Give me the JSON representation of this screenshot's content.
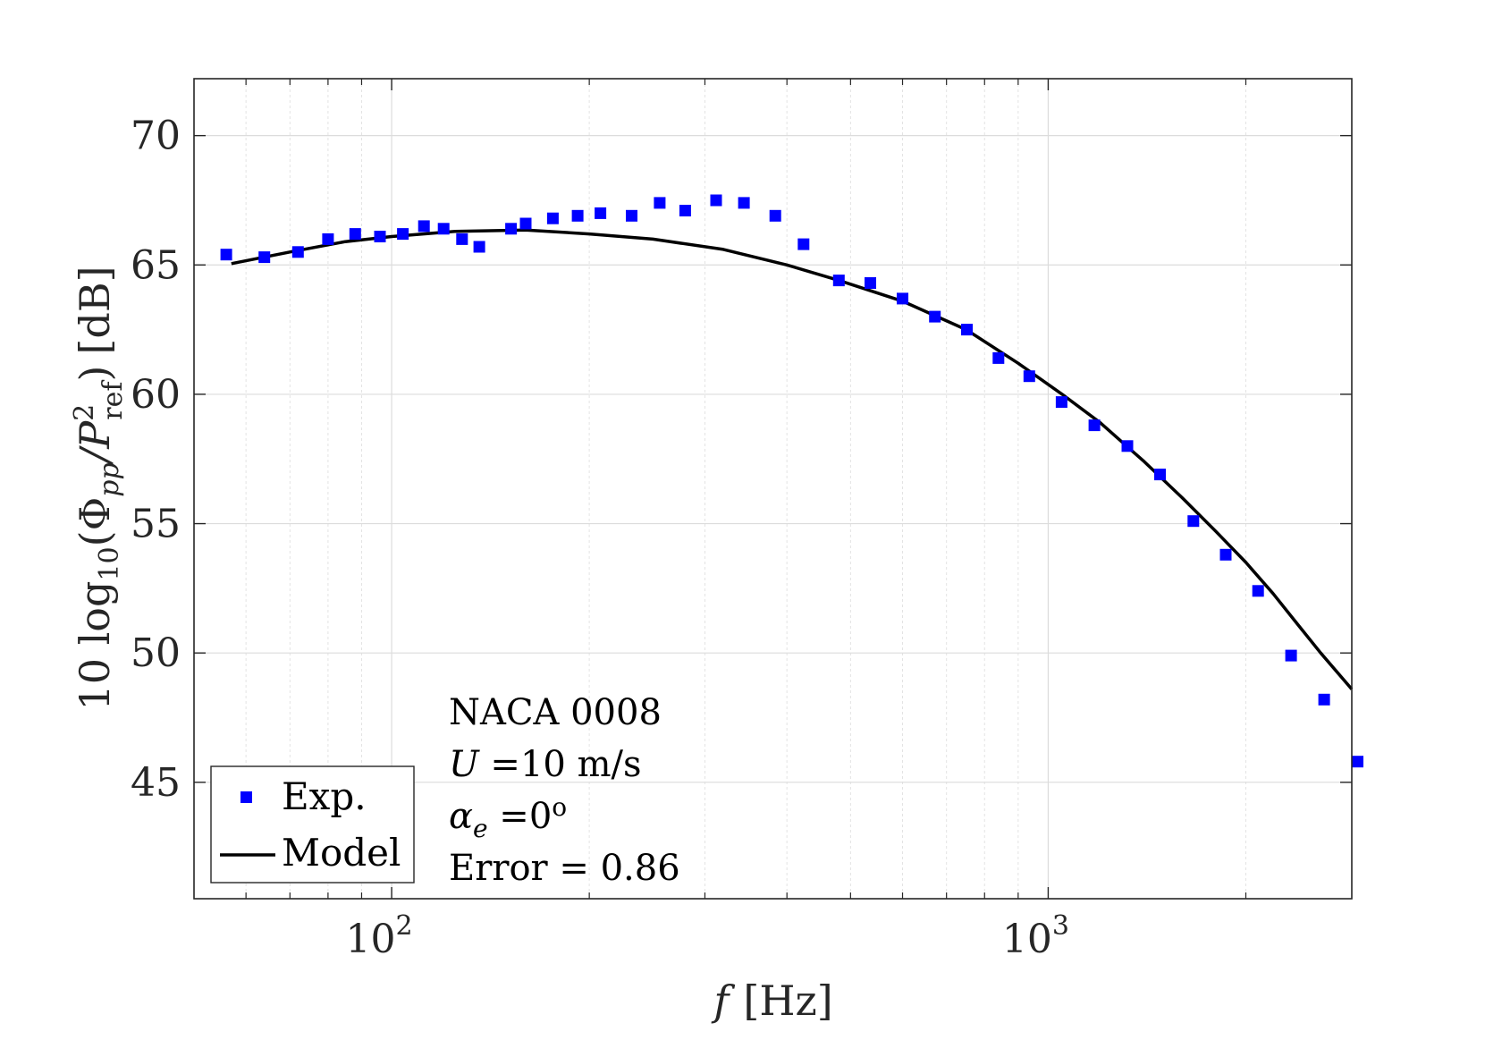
{
  "chart_data": {
    "type": "scatter",
    "title": "",
    "xlabel": {
      "symbol": "f",
      "unit": "[Hz]"
    },
    "ylabel": {
      "prefix": "10 log",
      "sub": "10",
      "phi": "(Φ",
      "phi_sub": "pp",
      "slash": "/P",
      "p_sup": "2",
      "p_sub": "ref",
      "close": ")",
      "unit": "[dB]"
    },
    "x_scale": "log",
    "xlim": [
      50,
      2900
    ],
    "ylim": [
      40.5,
      72.2
    ],
    "x_ticks": [
      {
        "value": 100,
        "base": "10",
        "exp": "2"
      },
      {
        "value": 1000,
        "base": "10",
        "exp": "3"
      }
    ],
    "y_ticks": [
      45,
      50,
      55,
      60,
      65,
      70
    ],
    "grid": true,
    "colors": {
      "exp": "#0000ff",
      "model": "#000000",
      "grid": "#e3e3e3",
      "axes": "#262626"
    },
    "series": [
      {
        "name": "Exp.",
        "style": "square-markers",
        "points": [
          [
            56,
            65.4
          ],
          [
            64,
            65.3
          ],
          [
            72,
            65.5
          ],
          [
            80,
            66.0
          ],
          [
            88,
            66.2
          ],
          [
            96,
            66.1
          ],
          [
            104,
            66.2
          ],
          [
            112,
            66.5
          ],
          [
            120,
            66.4
          ],
          [
            128,
            66.0
          ],
          [
            136,
            65.7
          ],
          [
            152,
            66.4
          ],
          [
            160,
            66.6
          ],
          [
            176,
            66.8
          ],
          [
            192,
            66.9
          ],
          [
            208,
            67.0
          ],
          [
            232,
            66.9
          ],
          [
            256,
            67.4
          ],
          [
            280,
            67.1
          ],
          [
            312,
            67.5
          ],
          [
            344,
            67.4
          ],
          [
            384,
            66.9
          ],
          [
            424,
            65.8
          ],
          [
            480,
            64.4
          ],
          [
            536,
            64.3
          ],
          [
            600,
            63.7
          ],
          [
            672,
            63.0
          ],
          [
            752,
            62.5
          ],
          [
            840,
            61.4
          ],
          [
            936,
            60.7
          ],
          [
            1048,
            59.7
          ],
          [
            1176,
            58.8
          ],
          [
            1320,
            58.0
          ],
          [
            1480,
            56.9
          ],
          [
            1664,
            55.1
          ],
          [
            1864,
            53.8
          ],
          [
            2088,
            52.4
          ],
          [
            2344,
            49.9
          ],
          [
            2632,
            48.2
          ],
          [
            2960,
            45.8
          ]
        ]
      },
      {
        "name": "Model",
        "style": "solid-line",
        "points": [
          [
            57,
            65.05
          ],
          [
            70,
            65.5
          ],
          [
            85,
            65.9
          ],
          [
            100,
            66.1
          ],
          [
            125,
            66.3
          ],
          [
            160,
            66.35
          ],
          [
            200,
            66.2
          ],
          [
            250,
            66.0
          ],
          [
            320,
            65.6
          ],
          [
            400,
            65.0
          ],
          [
            480,
            64.4
          ],
          [
            600,
            63.6
          ],
          [
            750,
            62.5
          ],
          [
            900,
            61.2
          ],
          [
            1050,
            60.0
          ],
          [
            1200,
            58.9
          ],
          [
            1400,
            57.4
          ],
          [
            1600,
            56.0
          ],
          [
            1800,
            54.7
          ],
          [
            2000,
            53.5
          ],
          [
            2200,
            52.3
          ],
          [
            2400,
            51.1
          ],
          [
            2600,
            50.0
          ],
          [
            2900,
            48.6
          ]
        ]
      }
    ],
    "legend": {
      "location": "bottom-left",
      "entries": [
        "Exp.",
        "Model"
      ]
    },
    "annotation": {
      "line1": "NACA 0008",
      "line2": {
        "var": "U",
        "text": " =10 m/s"
      },
      "line3": {
        "var": "α",
        "sub": "e",
        "text": " =0",
        "sup": "o"
      },
      "line4": "Error = 0.86"
    }
  }
}
